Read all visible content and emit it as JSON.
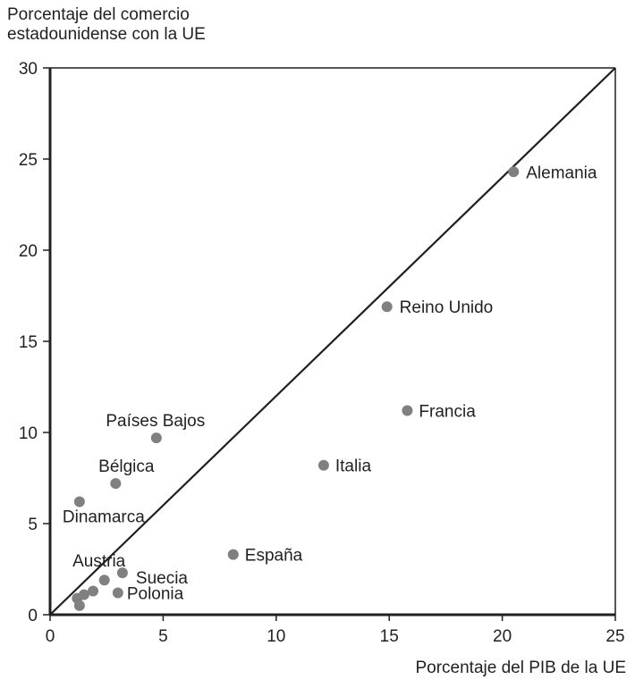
{
  "chart_data": {
    "type": "scatter",
    "title": "",
    "ylabel_line1": "Porcentaje del comercio",
    "ylabel_line2": "estadounidense con la UE",
    "xlabel": "Porcentaje del PIB de la UE",
    "xlim": [
      0,
      25
    ],
    "ylim": [
      0,
      30
    ],
    "xticks": [
      "0",
      "5",
      "10",
      "15",
      "20",
      "25"
    ],
    "yticks": [
      "0",
      "5",
      "10",
      "15",
      "20",
      "25",
      "30"
    ],
    "grid": false,
    "reference_line": {
      "from": [
        0,
        0
      ],
      "to": [
        25,
        30
      ]
    },
    "point_color": "#808080",
    "points": [
      {
        "label": "Alemania",
        "x": 20.5,
        "y": 24.3
      },
      {
        "label": "Reino Unido",
        "x": 14.9,
        "y": 16.9
      },
      {
        "label": "Francia",
        "x": 15.8,
        "y": 11.2
      },
      {
        "label": "Italia",
        "x": 12.1,
        "y": 8.2
      },
      {
        "label": "España",
        "x": 8.1,
        "y": 3.3
      },
      {
        "label": "Países Bajos",
        "x": 4.7,
        "y": 9.7
      },
      {
        "label": "Bélgica",
        "x": 2.9,
        "y": 7.2
      },
      {
        "label": "Dinamarca",
        "x": 1.3,
        "y": 6.2
      },
      {
        "label": "Austria",
        "x": 2.4,
        "y": 1.9
      },
      {
        "label": "Suecia",
        "x": 3.2,
        "y": 2.3
      },
      {
        "label": "Polonia",
        "x": 3.0,
        "y": 1.2
      },
      {
        "label": "",
        "x": 1.2,
        "y": 0.9
      },
      {
        "label": "",
        "x": 1.3,
        "y": 0.5
      },
      {
        "label": "",
        "x": 1.5,
        "y": 1.1
      },
      {
        "label": "",
        "x": 1.9,
        "y": 1.3
      }
    ]
  }
}
